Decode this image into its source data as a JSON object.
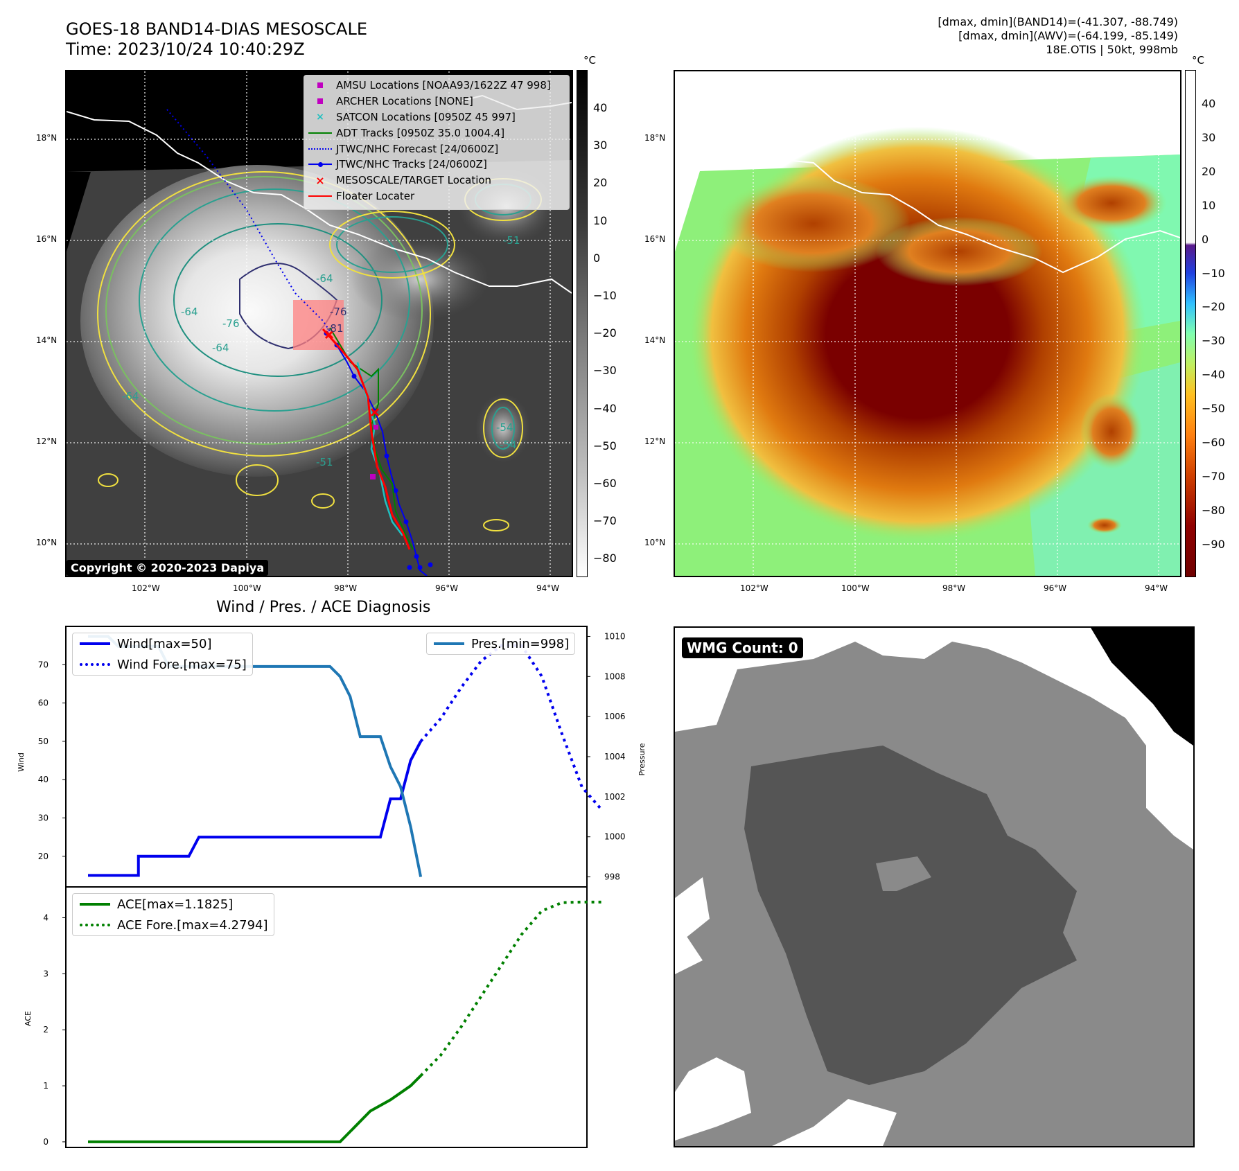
{
  "header": {
    "title_line1": "GOES-18 BAND14-DIAS MESOSCALE",
    "title_line2": "Time: 2023/10/24 10:40:29Z",
    "right_line1": "[dmax, dmin](BAND14)=(-41.307, -88.749)",
    "right_line2": "[dmax, dmin](AWV)=(-64.199, -85.149)",
    "right_line3": "18E.OTIS | 50kt, 998mb"
  },
  "map": {
    "lon_ticks": [
      "102°W",
      "100°W",
      "98°W",
      "96°W",
      "94°W"
    ],
    "lat_ticks": [
      "18°N",
      "16°N",
      "14°N",
      "12°N",
      "10°N"
    ],
    "copyright": "Copyright © 2020-2023 Dapiya",
    "contour_labels": [
      "-64",
      "-76",
      "-76",
      "-81",
      "-64",
      "-54",
      "-54",
      "-51",
      "-64",
      "-64",
      "-51"
    ]
  },
  "legend": {
    "items": [
      {
        "label": "AMSU Locations [NOAA93/1622Z 47 998]",
        "symbol": "square",
        "color": "#c000c0"
      },
      {
        "label": "ARCHER Locations [NONE]",
        "symbol": "square",
        "color": "#c000c0"
      },
      {
        "label": "SATCON Locations [0950Z 45 997]",
        "symbol": "x",
        "color": "#20c0c0"
      },
      {
        "label": "ADT Tracks [0950Z 35.0 1004.4]",
        "symbol": "line",
        "color": "#008000"
      },
      {
        "label": "JTWC/NHC Forecast [24/0600Z]",
        "symbol": "dotted",
        "color": "#0000ee"
      },
      {
        "label": "JTWC/NHC Tracks [24/0600Z]",
        "symbol": "line-dot",
        "color": "#0000ee"
      },
      {
        "label": "MESOSCALE/TARGET Location",
        "symbol": "x",
        "color": "#ff0000"
      },
      {
        "label": "Floater Locater",
        "symbol": "line",
        "color": "#ff0000"
      }
    ]
  },
  "colorbar1": {
    "unit": "°C",
    "ticks": [
      "40",
      "30",
      "20",
      "10",
      "0",
      "−10",
      "−20",
      "−30",
      "−40",
      "−50",
      "−60",
      "−70",
      "−80"
    ]
  },
  "colorbar2": {
    "unit": "°C",
    "ticks": [
      "40",
      "30",
      "20",
      "10",
      "0",
      "−10",
      "−20",
      "−30",
      "−40",
      "−50",
      "−60",
      "−70",
      "−80",
      "−90"
    ]
  },
  "wmg": {
    "label": "WMG Count: 0"
  },
  "chart_data": [
    {
      "type": "line",
      "title": "Wind / Pres. / ACE Diagnosis",
      "ylabel": "Wind",
      "ylabel_right": "Pressure",
      "ylim": [
        12,
        80
      ],
      "ylim_right": [
        997.5,
        1010.5
      ],
      "yticks": [
        20,
        30,
        40,
        50,
        60,
        70
      ],
      "yticks_right": [
        998,
        1000,
        1002,
        1004,
        1006,
        1008,
        1010
      ],
      "series": [
        {
          "name": "Wind[max=50]",
          "style": "solid",
          "color": "#0000ee",
          "x": [
            0,
            1,
            1,
            2,
            3,
            3,
            4,
            5,
            5,
            6,
            7,
            8,
            9,
            10,
            11,
            12,
            13,
            14,
            15,
            16,
            17,
            17,
            18,
            18,
            19,
            20,
            21,
            21,
            22,
            23,
            24,
            25,
            26,
            27,
            28,
            28,
            29,
            30,
            30,
            31,
            32,
            33
          ],
          "values": [
            15,
            15,
            15,
            15,
            15,
            15,
            15,
            15,
            20,
            20,
            20,
            20,
            20,
            20,
            25,
            25,
            25,
            25,
            25,
            25,
            25,
            25,
            25,
            25,
            25,
            25,
            25,
            25,
            25,
            25,
            25,
            25,
            25,
            25,
            25,
            25,
            25,
            35,
            35,
            35,
            45,
            50
          ]
        },
        {
          "name": "Wind Fore.[max=75]",
          "style": "dotted",
          "color": "#0000ee",
          "x": [
            33,
            35,
            37,
            39,
            41,
            43,
            45,
            47,
            49,
            51
          ],
          "values": [
            50,
            56,
            64,
            71,
            75,
            75,
            67,
            52,
            38,
            32
          ]
        }
      ]
    },
    {
      "type": "line",
      "series": [
        {
          "name": "Pres.[min=998]",
          "style": "solid",
          "color": "#1f77b4",
          "x": [
            0,
            1,
            2,
            3,
            4,
            5,
            6,
            7,
            8,
            9,
            10,
            11,
            12,
            13,
            14,
            15,
            16,
            17,
            18,
            19,
            20,
            21,
            22,
            23,
            24,
            25,
            26,
            27,
            28,
            29,
            30,
            31,
            32,
            33
          ],
          "values": [
            1010,
            1010,
            1010,
            1009.5,
            1009.5,
            1009.5,
            1009.5,
            1009.5,
            1008.5,
            1008.5,
            1008.5,
            1008.5,
            1008.5,
            1008.5,
            1008.5,
            1008.5,
            1008.5,
            1008.5,
            1008.5,
            1008.5,
            1008.5,
            1008.5,
            1008.5,
            1008.5,
            1008.5,
            1008,
            1007,
            1005,
            1005,
            1005,
            1003.5,
            1002.5,
            1000.5,
            998
          ]
        }
      ]
    },
    {
      "type": "line",
      "ylabel": "ACE",
      "ylim": [
        -0.1,
        4.55
      ],
      "yticks": [
        0,
        1,
        2,
        3,
        4
      ],
      "series": [
        {
          "name": "ACE[max=1.1825]",
          "style": "solid",
          "color": "#008000",
          "x": [
            0,
            5,
            10,
            15,
            20,
            25,
            28,
            30,
            32,
            33
          ],
          "values": [
            0,
            0,
            0,
            0,
            0,
            0,
            0.55,
            0.75,
            1.0,
            1.18
          ]
        },
        {
          "name": "ACE Fore.[max=4.2794]",
          "style": "dotted",
          "color": "#008000",
          "x": [
            33,
            35,
            37,
            39,
            41,
            43,
            45,
            47,
            49,
            51
          ],
          "values": [
            1.18,
            1.55,
            2.05,
            2.6,
            3.15,
            3.7,
            4.12,
            4.27,
            4.28,
            4.28
          ]
        }
      ]
    }
  ]
}
